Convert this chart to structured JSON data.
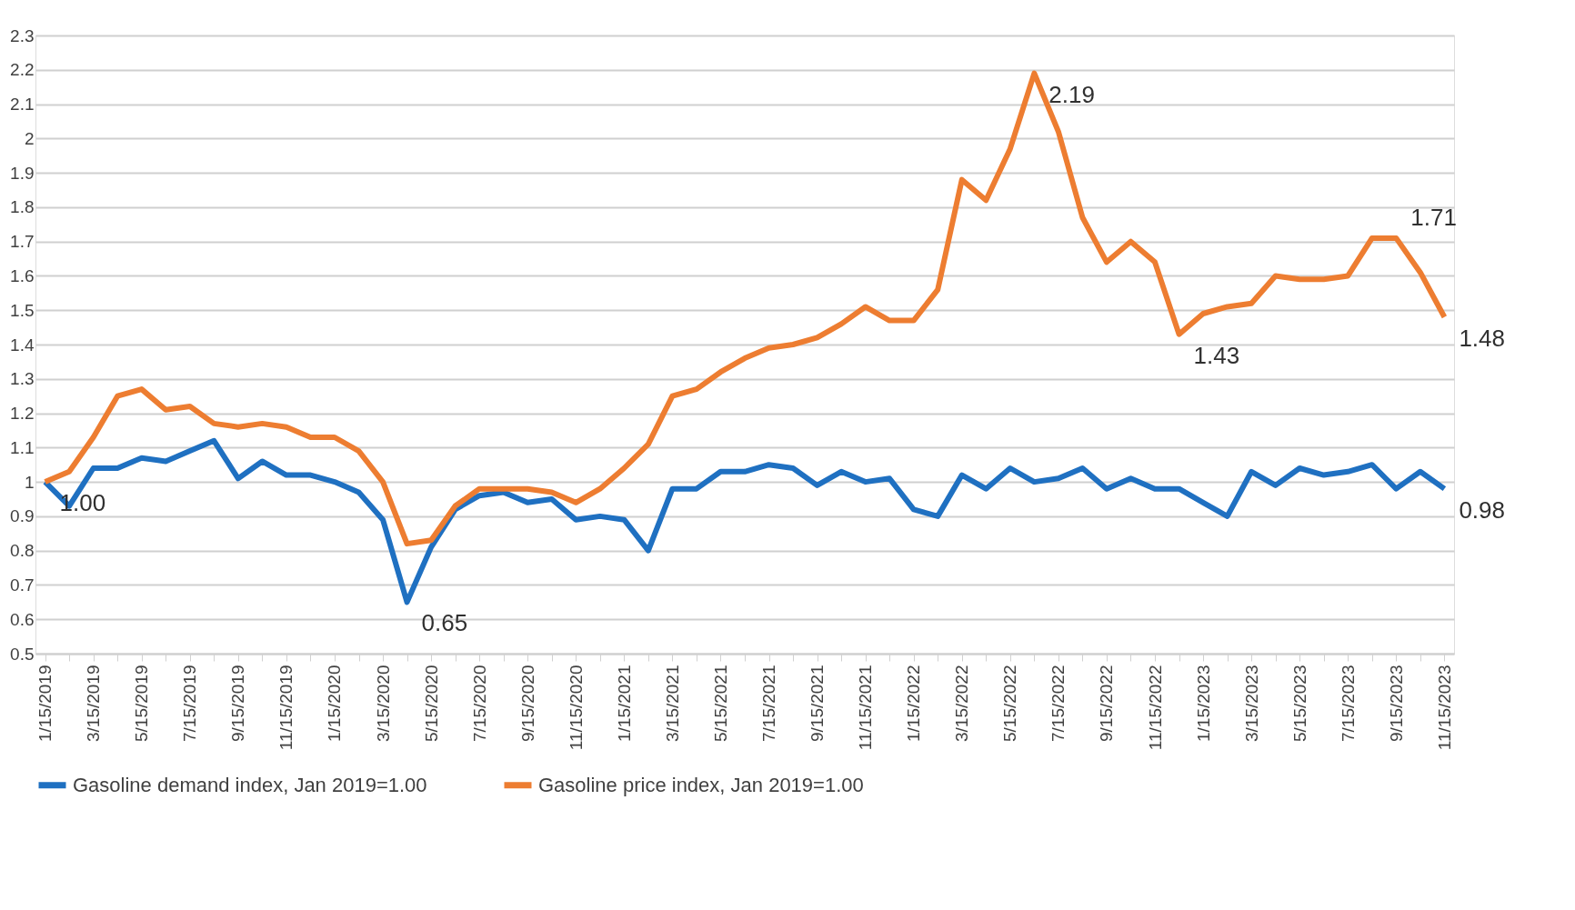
{
  "chart_data": {
    "type": "line",
    "categories": [
      "1/15/2019",
      null,
      "3/15/2019",
      null,
      "5/15/2019",
      null,
      "7/15/2019",
      null,
      "9/15/2019",
      null,
      "11/15/2019",
      null,
      "1/15/2020",
      null,
      "3/15/2020",
      null,
      "5/15/2020",
      null,
      "7/15/2020",
      null,
      "9/15/2020",
      null,
      "11/15/2020",
      null,
      "1/15/2021",
      null,
      "3/15/2021",
      null,
      "5/15/2021",
      null,
      "7/15/2021",
      null,
      "9/15/2021",
      null,
      "11/15/2021",
      null,
      "1/15/2022",
      null,
      "3/15/2022",
      null,
      "5/15/2022",
      null,
      "7/15/2022",
      null,
      "9/15/2022",
      null,
      "11/15/2022",
      null,
      "1/15/2023",
      null,
      "3/15/2023",
      null,
      "5/15/2023",
      null,
      "7/15/2023",
      null,
      "9/15/2023",
      null,
      "11/15/2023"
    ],
    "series": [
      {
        "name": "Gasoline demand index, Jan 2019=1.00",
        "color": "#1f70c1",
        "values": [
          1.0,
          0.93,
          1.04,
          1.04,
          1.07,
          1.06,
          1.09,
          1.12,
          1.01,
          1.06,
          1.02,
          1.02,
          1.0,
          0.97,
          0.89,
          0.65,
          0.81,
          0.92,
          0.96,
          0.97,
          0.94,
          0.95,
          0.89,
          0.9,
          0.89,
          0.8,
          0.98,
          0.98,
          1.03,
          1.03,
          1.05,
          1.04,
          0.99,
          1.03,
          1.0,
          1.01,
          0.92,
          0.9,
          1.02,
          0.98,
          1.04,
          1.0,
          1.01,
          1.04,
          0.98,
          1.01,
          0.98,
          0.98,
          0.94,
          0.9,
          1.03,
          0.99,
          1.04,
          1.02,
          1.03,
          1.05,
          0.98,
          1.03,
          0.98
        ],
        "value_labels": [
          "1.00",
          null,
          null,
          null,
          null,
          null,
          null,
          null,
          null,
          null,
          null,
          null,
          null,
          null,
          null,
          "0.65",
          null,
          null,
          null,
          null,
          null,
          null,
          null,
          null,
          null,
          null,
          null,
          null,
          null,
          null,
          null,
          null,
          null,
          null,
          null,
          null,
          null,
          null,
          null,
          null,
          null,
          null,
          null,
          null,
          null,
          null,
          null,
          null,
          null,
          null,
          null,
          null,
          null,
          null,
          null,
          null,
          null,
          null,
          "0.98"
        ]
      },
      {
        "name": "Gasoline price index, Jan 2019=1.00",
        "color": "#ed7d31",
        "values": [
          1.0,
          1.03,
          1.13,
          1.25,
          1.27,
          1.21,
          1.22,
          1.17,
          1.16,
          1.17,
          1.16,
          1.13,
          1.13,
          1.09,
          1.0,
          0.82,
          0.83,
          0.93,
          0.98,
          0.98,
          0.98,
          0.97,
          0.94,
          0.98,
          1.04,
          1.11,
          1.25,
          1.27,
          1.32,
          1.36,
          1.39,
          1.4,
          1.42,
          1.46,
          1.51,
          1.47,
          1.47,
          1.56,
          1.88,
          1.82,
          1.97,
          2.19,
          2.02,
          1.77,
          1.64,
          1.7,
          1.64,
          1.43,
          1.49,
          1.51,
          1.52,
          1.6,
          1.59,
          1.59,
          1.6,
          1.71,
          1.71,
          1.61,
          1.48
        ],
        "value_labels": [
          null,
          null,
          null,
          null,
          null,
          null,
          null,
          null,
          null,
          null,
          null,
          null,
          null,
          null,
          null,
          null,
          null,
          null,
          null,
          null,
          null,
          null,
          null,
          null,
          null,
          null,
          null,
          null,
          null,
          null,
          null,
          null,
          null,
          null,
          null,
          null,
          null,
          null,
          null,
          null,
          null,
          "2.19",
          null,
          null,
          null,
          null,
          null,
          "1.43",
          null,
          null,
          null,
          null,
          null,
          null,
          null,
          null,
          "1.71",
          null,
          "1.48"
        ]
      }
    ],
    "ylim": [
      0.5,
      2.3
    ],
    "yticks": [
      0.5,
      0.6,
      0.7,
      0.8,
      0.9,
      1,
      1.1,
      1.2,
      1.3,
      1.4,
      1.5,
      1.6,
      1.7,
      1.8,
      1.9,
      2,
      2.1,
      2.2,
      2.3
    ],
    "grid": "y",
    "legend": "bottom",
    "line_style": "solid",
    "marker": "none"
  }
}
